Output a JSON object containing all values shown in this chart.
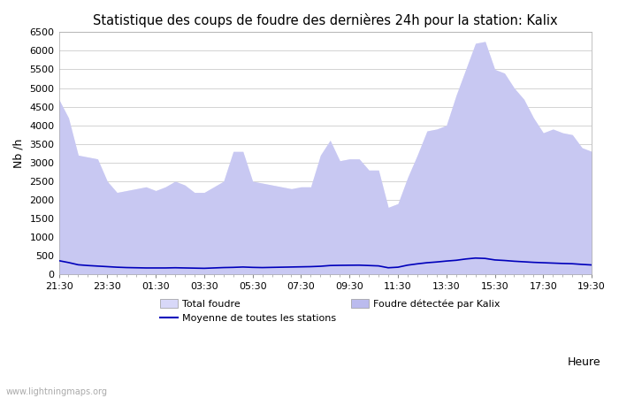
{
  "title": "Statistique des coups de foudre des dernières 24h pour la station: Kalix",
  "ylabel": "Nb /h",
  "xlabel": "Heure",
  "watermark": "www.lightningmaps.org",
  "ylim": [
    0,
    6500
  ],
  "xtick_labels": [
    "21:30",
    "23:30",
    "01:30",
    "03:30",
    "05:30",
    "07:30",
    "09:30",
    "11:30",
    "13:30",
    "15:30",
    "17:30",
    "19:30"
  ],
  "ytick_labels": [
    "0",
    "500",
    "1000",
    "1500",
    "2000",
    "2500",
    "3000",
    "3500",
    "4000",
    "4500",
    "5000",
    "5500",
    "6000",
    "6500"
  ],
  "color_total": "#d8d8f8",
  "color_kalix": "#bbbbee",
  "color_mean": "#0000bb",
  "bg_color": "#ffffff",
  "total_foudre": [
    4700,
    4200,
    3200,
    3150,
    3100,
    2500,
    2200,
    2250,
    2300,
    2350,
    2250,
    2350,
    2500,
    2400,
    2200,
    2200,
    2350,
    2500,
    3300,
    3300,
    2500,
    2450,
    2400,
    2350,
    2300,
    2350,
    2350,
    3200,
    3600,
    3050,
    3100,
    3100,
    2800,
    2800,
    1800,
    1900,
    2600,
    3200,
    3850,
    3900,
    4000,
    4800,
    5500,
    6200,
    6250,
    5500,
    5400,
    5000,
    4700,
    4200,
    3800,
    3900,
    3800,
    3750,
    3400,
    3300
  ],
  "mean_line": [
    370,
    320,
    260,
    240,
    225,
    210,
    195,
    185,
    180,
    175,
    175,
    175,
    180,
    175,
    170,
    165,
    175,
    185,
    190,
    200,
    190,
    185,
    190,
    195,
    200,
    205,
    210,
    220,
    240,
    245,
    248,
    250,
    240,
    230,
    180,
    195,
    250,
    285,
    315,
    335,
    360,
    380,
    415,
    440,
    430,
    390,
    375,
    355,
    340,
    325,
    315,
    305,
    295,
    288,
    270,
    255
  ],
  "n_points": 56,
  "legend_total": "Total foudre",
  "legend_kalix": "Foudre détectée par Kalix",
  "legend_mean": "Moyenne de toutes les stations"
}
